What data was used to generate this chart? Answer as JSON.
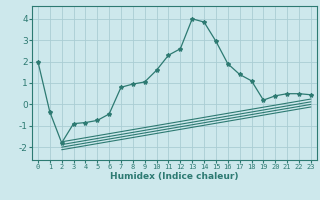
{
  "xlabel": "Humidex (Indice chaleur)",
  "background_color": "#cde8ec",
  "grid_color": "#aacdd4",
  "line_color": "#2d7a72",
  "spine_color": "#2d7a72",
  "xlim": [
    -0.5,
    23.5
  ],
  "ylim": [
    -2.6,
    4.6
  ],
  "yticks": [
    -2,
    -1,
    0,
    1,
    2,
    3,
    4
  ],
  "xticks": [
    0,
    1,
    2,
    3,
    4,
    5,
    6,
    7,
    8,
    9,
    10,
    11,
    12,
    13,
    14,
    15,
    16,
    17,
    18,
    19,
    20,
    21,
    22,
    23
  ],
  "main_line": {
    "x": [
      0,
      1,
      2,
      3,
      4,
      5,
      6,
      7,
      8,
      9,
      10,
      11,
      12,
      13,
      14,
      15,
      16,
      17,
      18,
      19,
      20,
      21,
      22,
      23
    ],
    "y": [
      2.0,
      -0.35,
      -1.8,
      -0.9,
      -0.85,
      -0.75,
      -0.45,
      0.8,
      0.95,
      1.05,
      1.6,
      2.3,
      2.6,
      4.0,
      3.85,
      2.95,
      1.9,
      1.4,
      1.1,
      0.2,
      0.4,
      0.5,
      0.5,
      0.45
    ]
  },
  "flat_lines": [
    {
      "x": [
        2,
        23
      ],
      "y": [
        -1.75,
        0.25
      ]
    },
    {
      "x": [
        2,
        23
      ],
      "y": [
        -1.88,
        0.12
      ]
    },
    {
      "x": [
        2,
        23
      ],
      "y": [
        -2.0,
        0.0
      ]
    },
    {
      "x": [
        2,
        23
      ],
      "y": [
        -2.12,
        -0.12
      ]
    }
  ]
}
